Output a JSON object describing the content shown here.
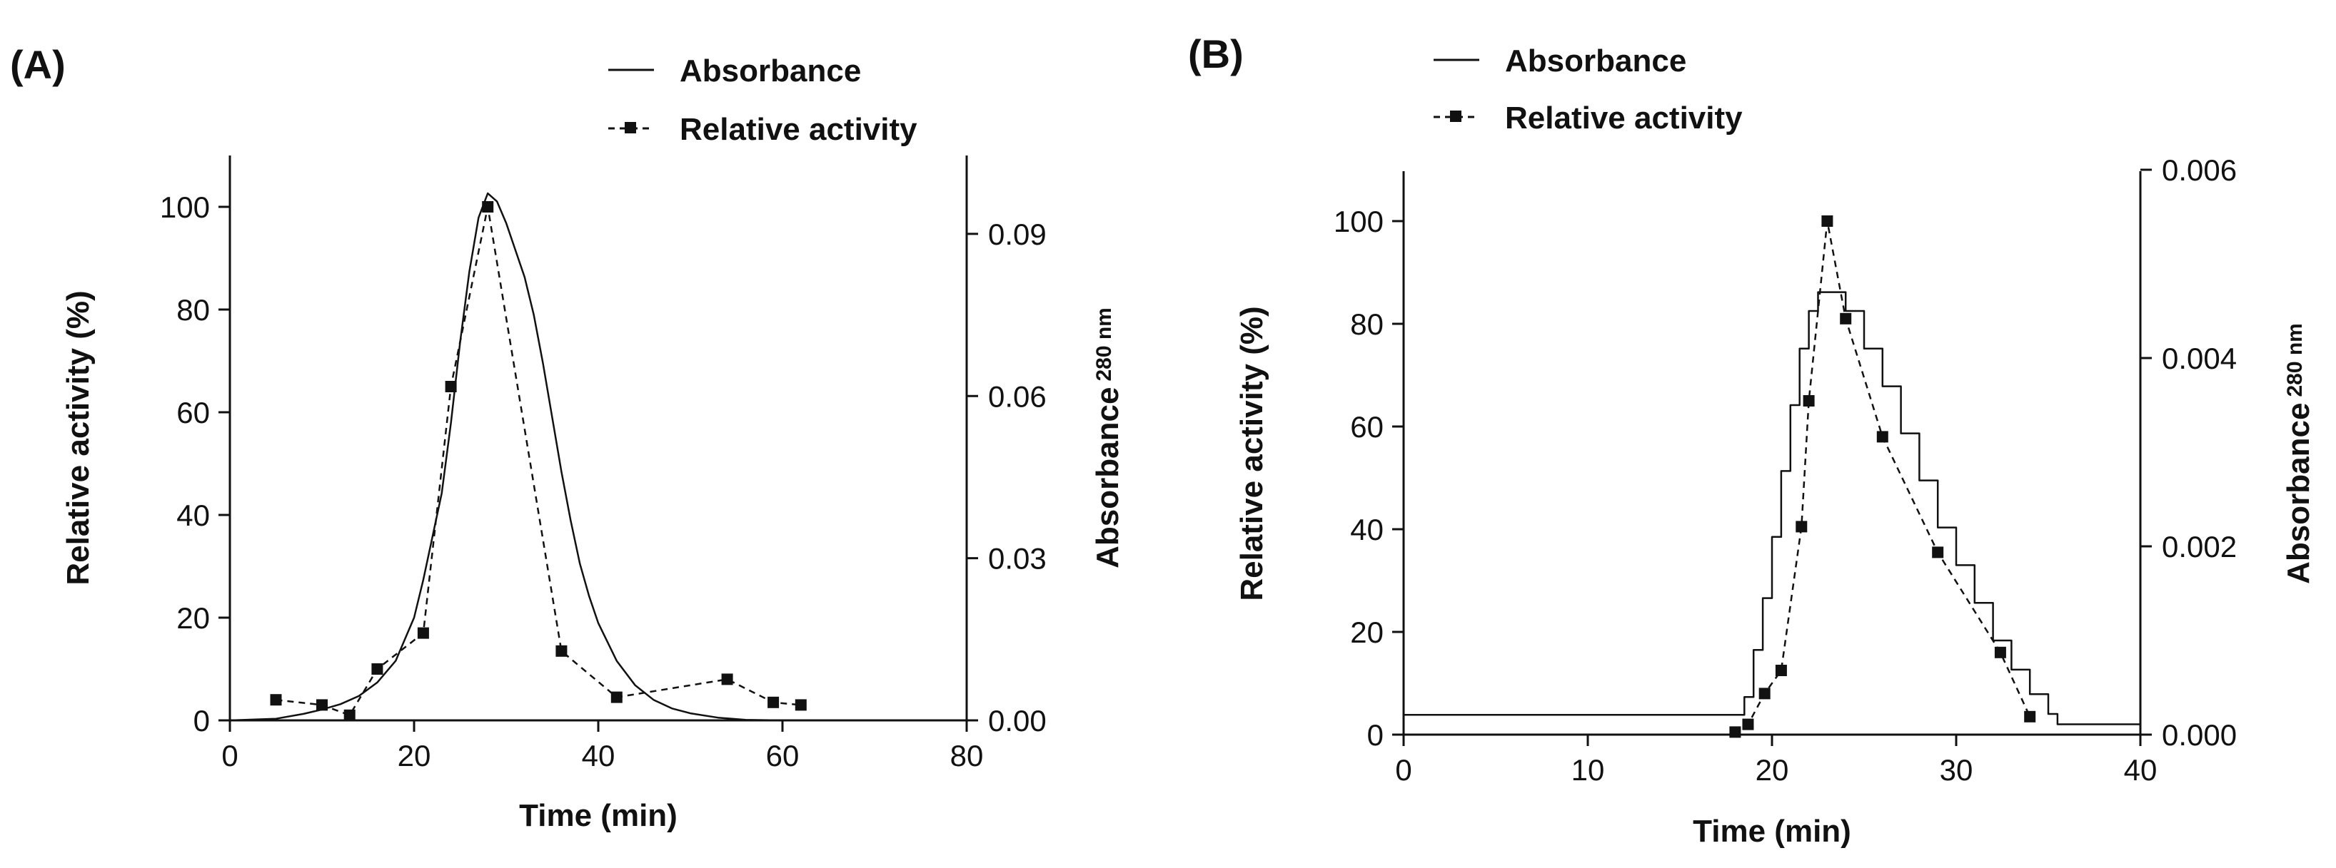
{
  "chart_data": [
    {
      "type": "line",
      "panel_label": "(A)",
      "xlabel": "Time (min)",
      "ylabel": "Relative activity (%)",
      "y2label": "Absorbance",
      "y2label_sub": "280 nm",
      "xlim": [
        0,
        80
      ],
      "ylim": [
        0,
        110
      ],
      "y2lim": [
        0,
        0.1045
      ],
      "x_ticks": [
        "0",
        "20",
        "40",
        "60",
        "80"
      ],
      "y_ticks": [
        "0",
        "20",
        "40",
        "60",
        "80",
        "100"
      ],
      "y2_ticks": [
        "0.00",
        "0.03",
        "0.06",
        "0.09"
      ],
      "legend": [
        "Absorbance",
        "Relative activity"
      ],
      "legend_position": "top-center",
      "grid": false,
      "series": [
        {
          "name": "Absorbance",
          "style": "solid",
          "axis": "right",
          "x": [
            0,
            5,
            8,
            10,
            12,
            14,
            16,
            18,
            20,
            21,
            22,
            23,
            24,
            25,
            26,
            27,
            28,
            29,
            30,
            31,
            32,
            33,
            34,
            35,
            36,
            37,
            38,
            39,
            40,
            42,
            44,
            46,
            48,
            50,
            53,
            56,
            60
          ],
          "y": [
            0.0,
            0.0003,
            0.0012,
            0.002,
            0.003,
            0.0045,
            0.007,
            0.011,
            0.019,
            0.026,
            0.034,
            0.042,
            0.055,
            0.07,
            0.083,
            0.093,
            0.0975,
            0.096,
            0.092,
            0.087,
            0.082,
            0.075,
            0.066,
            0.056,
            0.046,
            0.037,
            0.029,
            0.023,
            0.018,
            0.011,
            0.0065,
            0.0038,
            0.0022,
            0.0013,
            0.0005,
            0.0001,
            0.0
          ]
        },
        {
          "name": "Relative activity",
          "style": "dashed-square",
          "axis": "left",
          "x": [
            5,
            10,
            13,
            16,
            21,
            24,
            28,
            36,
            42,
            54,
            59,
            62
          ],
          "y": [
            4,
            3,
            1,
            10,
            17,
            65,
            100,
            13.5,
            4.5,
            8,
            3.5,
            3
          ]
        }
      ]
    },
    {
      "type": "line",
      "panel_label": "(B)",
      "xlabel": "Time (min)",
      "ylabel": "Relative activity (%)",
      "y2label": "Absorbance",
      "y2label_sub": "280 nm",
      "xlim": [
        0,
        40
      ],
      "ylim": [
        0,
        110
      ],
      "y2lim": [
        0,
        0.006
      ],
      "x_ticks": [
        "0",
        "10",
        "20",
        "30",
        "40"
      ],
      "y_ticks": [
        "0",
        "20",
        "40",
        "60",
        "80",
        "100"
      ],
      "y2_ticks": [
        "0.000",
        "0.002",
        "0.004",
        "0.006"
      ],
      "legend": [
        "Absorbance",
        "Relative activity"
      ],
      "legend_position": "top-left",
      "grid": false,
      "series": [
        {
          "name": "Absorbance",
          "style": "solid-step",
          "axis": "right",
          "x": [
            0,
            18,
            18.5,
            19,
            19.5,
            20,
            20.5,
            21,
            21.5,
            22,
            22.5,
            23,
            23.5,
            24,
            25,
            26,
            27,
            28,
            29,
            30,
            31,
            32,
            33,
            34,
            35,
            35.5,
            36,
            40
          ],
          "y": [
            0.00021,
            0.00021,
            0.0004,
            0.0009,
            0.00145,
            0.0021,
            0.0028,
            0.0035,
            0.0041,
            0.0045,
            0.0047,
            0.0047,
            0.0047,
            0.0045,
            0.0041,
            0.0037,
            0.0032,
            0.0027,
            0.0022,
            0.0018,
            0.0014,
            0.001,
            0.00069,
            0.00043,
            0.00022,
            0.00011,
            0.00011,
            0.00011
          ]
        },
        {
          "name": "Relative activity",
          "style": "dashed-square",
          "axis": "left",
          "x": [
            18,
            18.7,
            19.6,
            20.5,
            21.6,
            22,
            23,
            24,
            26,
            29,
            32.4,
            34
          ],
          "y": [
            0.5,
            2,
            8,
            12.5,
            40.5,
            65,
            100,
            81,
            58,
            35.5,
            16,
            3.5
          ]
        }
      ]
    }
  ]
}
